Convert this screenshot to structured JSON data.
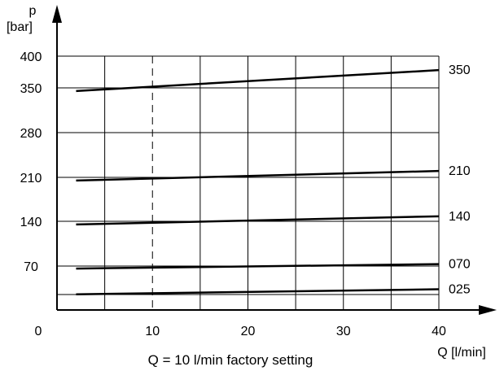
{
  "chart_data": {
    "type": "line",
    "ylabel_symbol": "p",
    "ylabel_unit": "[bar]",
    "xlabel": "Q [l/min]",
    "x_ticks": [
      "0",
      "10",
      "20",
      "30",
      "40"
    ],
    "y_ticks": [
      "400",
      "350",
      "280",
      "210",
      "140",
      "70"
    ],
    "y_tick_positions": [
      400,
      350,
      280,
      210,
      140,
      70
    ],
    "x_tick_positions": [
      0,
      10,
      20,
      30,
      40
    ],
    "xlim": [
      0,
      40
    ],
    "ylim": [
      0,
      400
    ],
    "grid": true,
    "x_grid_step": 5,
    "reference_line_x": 10,
    "note": "Q = 10 l/min  factory setting",
    "series": [
      {
        "name": "350",
        "x": [
          2,
          40
        ],
        "y": [
          345,
          378
        ]
      },
      {
        "name": "210",
        "x": [
          2,
          40
        ],
        "y": [
          205,
          220
        ]
      },
      {
        "name": "140",
        "x": [
          2,
          40
        ],
        "y": [
          135,
          148
        ]
      },
      {
        "name": "070",
        "x": [
          2,
          40
        ],
        "y": [
          66,
          73
        ]
      },
      {
        "name": "025",
        "x": [
          2,
          40
        ],
        "y": [
          25,
          33
        ]
      }
    ]
  }
}
